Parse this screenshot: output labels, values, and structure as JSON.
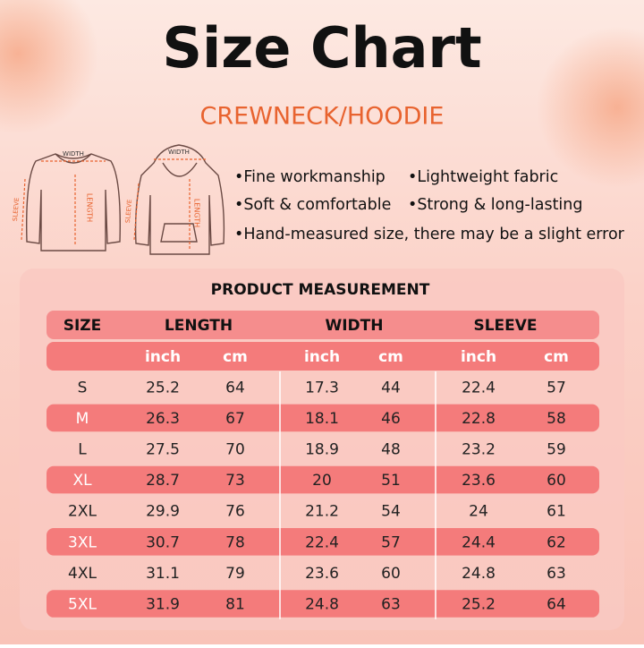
{
  "header": {
    "title": "Size Chart",
    "subtitle": "CREWNECK/HOODIE"
  },
  "diagrams": [
    {
      "width": "WIDTH",
      "length": "LENGTH",
      "sleeve": "SLEEVE"
    },
    {
      "width": "WIDTH",
      "length": "LENGTH",
      "sleeve": "SLEEVE"
    }
  ],
  "features": [
    [
      "•Fine workmanship",
      "•Lightweight fabric"
    ],
    [
      "•Soft & comfortable",
      "•Strong & long-lasting"
    ],
    [
      "•Hand-measured size, there may be a slight error"
    ]
  ],
  "table": {
    "title": "PRODUCT MEASUREMENT",
    "headers": [
      "SIZE",
      "LENGTH",
      "WIDTH",
      "SLEEVE"
    ],
    "units": [
      "inch",
      "cm",
      "inch",
      "cm",
      "inch",
      "cm"
    ],
    "rows": [
      [
        "S",
        25.2,
        64,
        17.3,
        44,
        22.4,
        57
      ],
      [
        "M",
        26.3,
        67,
        18.1,
        46,
        22.8,
        58
      ],
      [
        "L",
        27.5,
        70,
        18.9,
        48,
        23.2,
        59
      ],
      [
        "XL",
        28.7,
        73,
        20,
        51,
        23.6,
        60
      ],
      [
        "2XL",
        29.9,
        76,
        21.2,
        54,
        24,
        61
      ],
      [
        "3XL",
        30.7,
        78,
        22.4,
        57,
        24.4,
        62
      ],
      [
        "4XL",
        31.1,
        79,
        23.6,
        60,
        24.8,
        63
      ],
      [
        "5XL",
        31.9,
        81,
        24.8,
        63,
        25.2,
        64
      ]
    ]
  }
}
